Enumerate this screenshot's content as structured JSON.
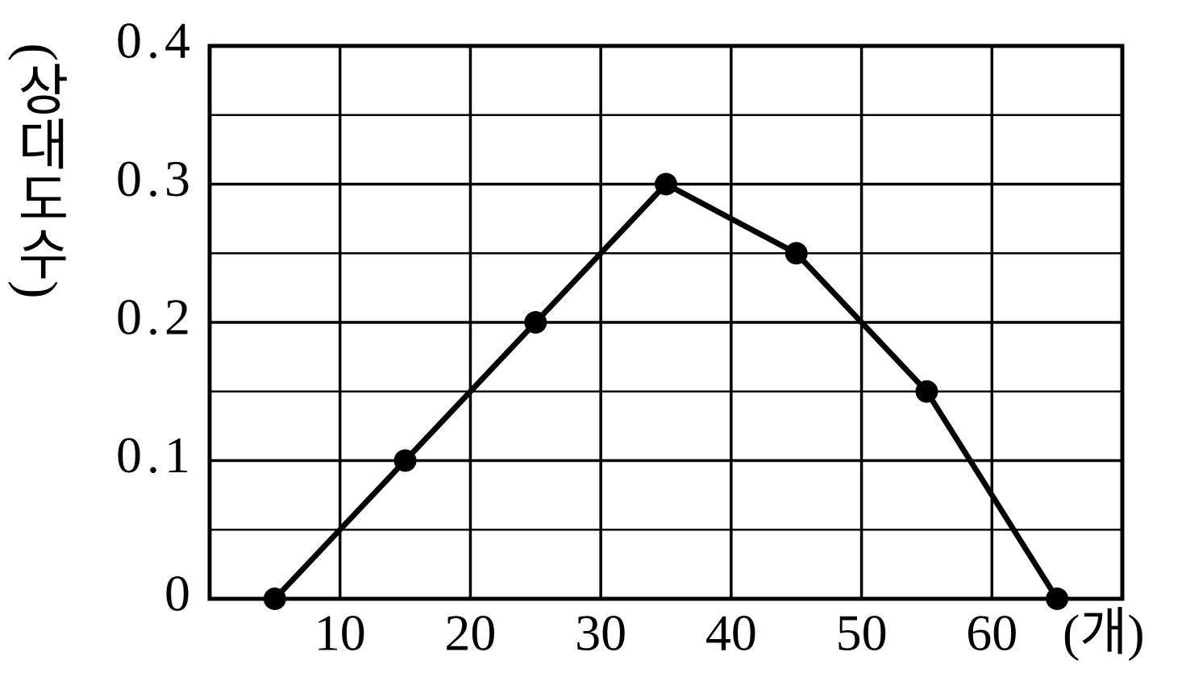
{
  "chart_data": {
    "type": "line",
    "y_label": "(상대도수)",
    "x_label": "(개)",
    "x": [
      5,
      15,
      25,
      35,
      45,
      55,
      65
    ],
    "values": [
      0,
      0.1,
      0.2,
      0.3,
      0.25,
      0.15,
      0
    ],
    "color": "#000000",
    "xlim": [
      0,
      70
    ],
    "xticks": [
      10,
      20,
      30,
      40,
      50,
      60
    ],
    "ylim": [
      0,
      0.4
    ],
    "yticks": [
      0,
      0.1,
      0.2,
      0.3,
      0.4
    ],
    "y_minor_grid": [
      0.05,
      0.15,
      0.25,
      0.35
    ],
    "grid": true,
    "markers": true
  }
}
